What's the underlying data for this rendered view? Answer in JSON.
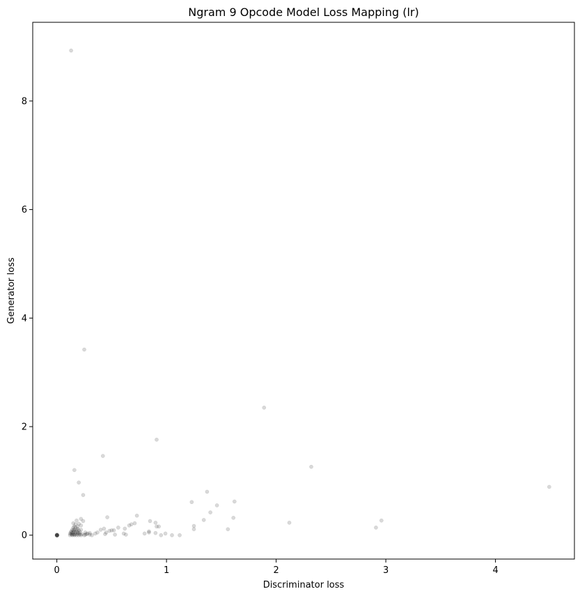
{
  "chart_data": {
    "type": "scatter",
    "title": "Ngram 9 Opcode Model Loss Mapping (lr)",
    "xlabel": "Discriminator loss",
    "ylabel": "Generator loss",
    "xlim": [
      -0.22,
      4.72
    ],
    "ylim": [
      -0.44,
      9.45
    ],
    "xticks": [
      0,
      1,
      2,
      3,
      4
    ],
    "yticks": [
      0,
      2,
      4,
      6,
      8
    ],
    "grid": false,
    "legend": "none",
    "marker_color": "#000000",
    "marker_alpha": 0.15,
    "points": [
      [
        0.13,
        8.93
      ],
      [
        0.25,
        3.42
      ],
      [
        1.89,
        2.35
      ],
      [
        0.91,
        1.76
      ],
      [
        0.42,
        1.46
      ],
      [
        2.32,
        1.26
      ],
      [
        0.16,
        1.2
      ],
      [
        0.2,
        0.97
      ],
      [
        4.49,
        0.89
      ],
      [
        1.37,
        0.8
      ],
      [
        0.24,
        0.74
      ],
      [
        1.23,
        0.61
      ],
      [
        1.62,
        0.62
      ],
      [
        1.46,
        0.55
      ],
      [
        1.4,
        0.42
      ],
      [
        0.73,
        0.36
      ],
      [
        0.46,
        0.33
      ],
      [
        1.34,
        0.28
      ],
      [
        1.61,
        0.32
      ],
      [
        2.96,
        0.27
      ],
      [
        0.85,
        0.26
      ],
      [
        0.9,
        0.23
      ],
      [
        2.12,
        0.23
      ],
      [
        0.71,
        0.22
      ],
      [
        0.66,
        0.18
      ],
      [
        0.68,
        0.2
      ],
      [
        1.25,
        0.17
      ],
      [
        0.91,
        0.16
      ],
      [
        0.93,
        0.16
      ],
      [
        0.56,
        0.14
      ],
      [
        0.62,
        0.12
      ],
      [
        2.91,
        0.14
      ],
      [
        1.25,
        0.11
      ],
      [
        1.56,
        0.11
      ],
      [
        0.4,
        0.1
      ],
      [
        0.43,
        0.12
      ],
      [
        0.5,
        0.09
      ],
      [
        0.52,
        0.09
      ],
      [
        0.48,
        0.08
      ],
      [
        0.84,
        0.07
      ],
      [
        0.84,
        0.05
      ],
      [
        0.8,
        0.03
      ],
      [
        0.9,
        0.04
      ],
      [
        0.99,
        0.03
      ],
      [
        0.61,
        0.03
      ],
      [
        0.63,
        0.01
      ],
      [
        0.53,
        0.01
      ],
      [
        0.44,
        0.02
      ],
      [
        0.45,
        0.05
      ],
      [
        0.95,
        0.0
      ],
      [
        1.05,
        0.0
      ],
      [
        1.12,
        0.0
      ],
      [
        0.35,
        0.03
      ],
      [
        0.37,
        0.05
      ],
      [
        0.3,
        0.04
      ],
      [
        0.3,
        0.01
      ],
      [
        0.26,
        0.01
      ],
      [
        0.26,
        0.05
      ],
      [
        0.28,
        0.03
      ],
      [
        0.22,
        0.3
      ],
      [
        0.24,
        0.26
      ],
      [
        0.18,
        0.27
      ],
      [
        0.2,
        0.21
      ],
      [
        0.22,
        0.18
      ],
      [
        0.17,
        0.2
      ],
      [
        0.15,
        0.22
      ],
      [
        0.19,
        0.16
      ],
      [
        0.17,
        0.14
      ],
      [
        0.15,
        0.14
      ],
      [
        0.14,
        0.1
      ],
      [
        0.16,
        0.1
      ],
      [
        0.18,
        0.1
      ],
      [
        0.2,
        0.09
      ],
      [
        0.22,
        0.1
      ],
      [
        0.21,
        0.06
      ],
      [
        0.19,
        0.05
      ],
      [
        0.17,
        0.05
      ],
      [
        0.15,
        0.06
      ],
      [
        0.13,
        0.05
      ],
      [
        0.12,
        0.03
      ],
      [
        0.13,
        0.02
      ],
      [
        0.15,
        0.02
      ],
      [
        0.17,
        0.02
      ],
      [
        0.19,
        0.02
      ],
      [
        0.21,
        0.02
      ],
      [
        0.23,
        0.02
      ],
      [
        0.14,
        0.01
      ],
      [
        0.16,
        0.01
      ],
      [
        0.18,
        0.0
      ],
      [
        0.2,
        0.0
      ],
      [
        0.22,
        0.0
      ],
      [
        0.12,
        0.0
      ],
      [
        0.14,
        0.0
      ],
      [
        0.16,
        0.0
      ],
      [
        0.25,
        0.0
      ],
      [
        0.27,
        0.02
      ],
      [
        0.32,
        0.0
      ],
      [
        0.14,
        0.04
      ],
      [
        0.16,
        0.07
      ],
      [
        0.18,
        0.07
      ],
      [
        0.15,
        0.09
      ],
      [
        0.19,
        0.12
      ],
      [
        0.16,
        0.16
      ],
      [
        0.13,
        0.07
      ],
      [
        0.2,
        0.04
      ],
      [
        0.0,
        0.0
      ],
      [
        0.0,
        0.01
      ],
      [
        0.0,
        -0.01
      ],
      [
        0.005,
        0.0
      ],
      [
        0.0,
        0.0
      ],
      [
        0.003,
        0.005
      ],
      [
        0.0,
        0.0
      ],
      [
        0.004,
        -0.004
      ]
    ]
  }
}
